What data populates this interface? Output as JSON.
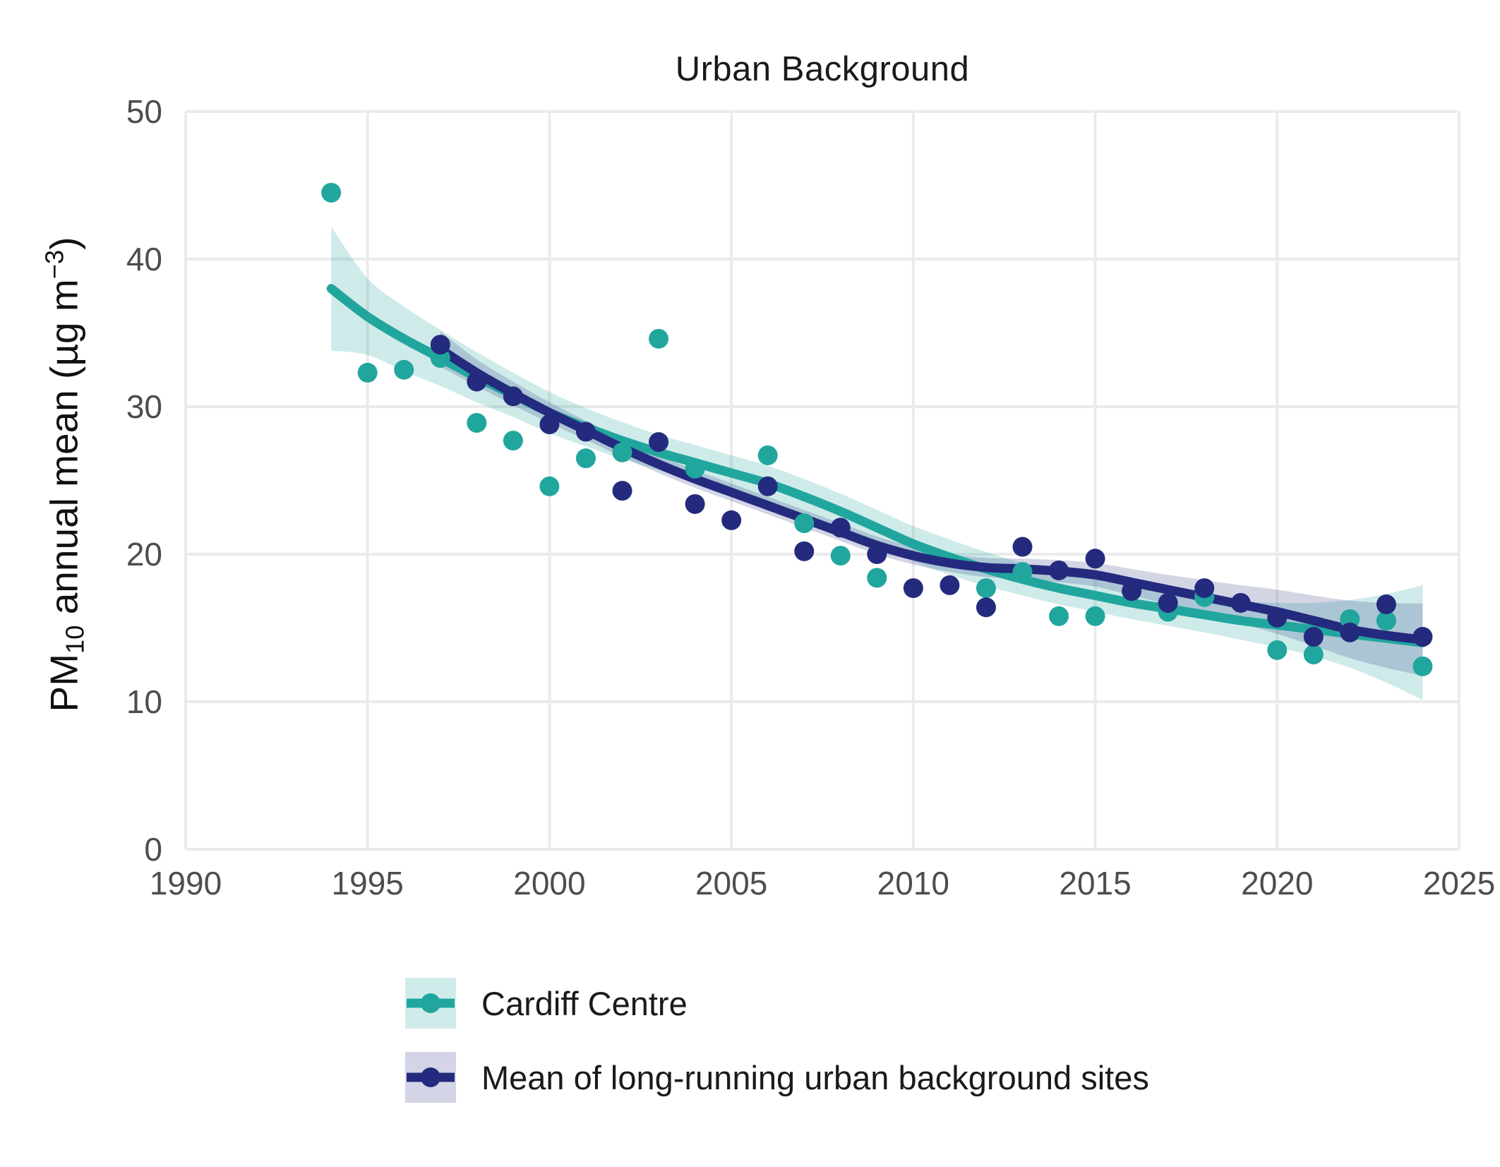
{
  "title": "Urban Background",
  "axes": {
    "y_label": {
      "prefix": "PM",
      "sub": "10",
      "mid": " annual mean (µg m",
      "sup": "−3",
      "suffix": ")"
    },
    "x_ticks": [
      "1990",
      "1995",
      "2000",
      "2005",
      "2010",
      "2015",
      "2020",
      "2025"
    ],
    "y_ticks": [
      "0",
      "10",
      "20",
      "30",
      "40",
      "50"
    ],
    "x_range": [
      1990,
      2025
    ],
    "y_range": [
      0,
      50
    ],
    "grid": "major only"
  },
  "colors": {
    "teal": "#21A69E",
    "navy": "#242B7E",
    "teal_band": "rgba(33,166,158,0.22)",
    "navy_band": "rgba(36,43,126,0.20)",
    "legend_swatch_teal": "#D0ECEA",
    "legend_swatch_navy": "#D3D4E6",
    "grid": "#EBEBEB",
    "tick_text": "#4d4d4d",
    "title_text": "#1a1a1a"
  },
  "legend": {
    "items": [
      {
        "label": "Cardiff Centre",
        "series": "cardiff-centre"
      },
      {
        "label": "Mean of long-running urban background sites",
        "series": "mean-long-running-sites"
      }
    ]
  },
  "chart_data": {
    "type": "scatter",
    "title": "Urban Background",
    "ylabel": "PM10 annual mean (µg m−3)",
    "xlabel": "",
    "xlim": [
      1990,
      2025
    ],
    "ylim": [
      0,
      50
    ],
    "grid": "on",
    "legend_position": "bottom-left",
    "series": [
      {
        "name": "Cardiff Centre",
        "color_key": "teal",
        "years": [
          1994,
          1995,
          1996,
          1997,
          1998,
          1999,
          2000,
          2001,
          2002,
          2003,
          2004,
          2005,
          2006,
          2007,
          2008,
          2009,
          2010,
          2011,
          2012,
          2013,
          2014,
          2015,
          2016,
          2017,
          2018,
          2019,
          2020,
          2021,
          2022,
          2023,
          2024
        ],
        "values": [
          44.5,
          32.3,
          32.5,
          33.3,
          28.9,
          27.7,
          24.6,
          26.5,
          26.9,
          34.6,
          25.8,
          null,
          26.7,
          22.1,
          19.9,
          18.4,
          null,
          null,
          17.7,
          18.8,
          15.8,
          15.8,
          null,
          16.1,
          17.1,
          null,
          13.5,
          13.2,
          15.6,
          15.5,
          12.4
        ],
        "trend": [
          38.0,
          36.1,
          34.6,
          33.3,
          32.0,
          30.8,
          29.6,
          28.6,
          27.7,
          26.9,
          26.2,
          25.5,
          24.8,
          23.9,
          22.9,
          21.8,
          20.7,
          19.8,
          19.0,
          18.3,
          17.7,
          17.2,
          16.7,
          16.3,
          15.9,
          15.5,
          15.2,
          14.9,
          14.6,
          14.3,
          14.0
        ],
        "band_half_width": [
          4.2,
          2.6,
          2.2,
          1.9,
          1.7,
          1.5,
          1.4,
          1.3,
          1.25,
          1.2,
          1.2,
          1.2,
          1.2,
          1.2,
          1.2,
          1.2,
          1.2,
          1.2,
          1.15,
          1.1,
          1.1,
          1.1,
          1.1,
          1.15,
          1.2,
          1.3,
          1.5,
          1.8,
          2.3,
          3.0,
          3.9
        ]
      },
      {
        "name": "Mean of long-running urban background sites",
        "color_key": "navy",
        "years": [
          1997,
          1998,
          1999,
          2000,
          2001,
          2002,
          2003,
          2004,
          2005,
          2006,
          2007,
          2008,
          2009,
          2010,
          2011,
          2012,
          2013,
          2014,
          2015,
          2016,
          2017,
          2018,
          2019,
          2020,
          2021,
          2022,
          2023,
          2024
        ],
        "values": [
          34.2,
          31.7,
          30.7,
          28.8,
          28.3,
          24.3,
          27.6,
          23.4,
          22.3,
          24.6,
          20.2,
          21.8,
          20.0,
          17.7,
          17.9,
          16.4,
          20.5,
          18.9,
          19.7,
          17.5,
          16.7,
          17.7,
          16.7,
          15.7,
          14.4,
          14.7,
          16.6,
          14.4
        ],
        "trend": [
          33.9,
          32.3,
          30.9,
          29.6,
          28.4,
          27.2,
          26.1,
          25.1,
          24.2,
          23.3,
          22.4,
          21.5,
          20.6,
          19.9,
          19.4,
          19.1,
          19.0,
          18.85,
          18.6,
          18.1,
          17.6,
          17.1,
          16.6,
          16.1,
          15.5,
          14.9,
          14.5,
          14.2
        ],
        "band_half_width": [
          1.2,
          0.9,
          0.8,
          0.7,
          0.65,
          0.6,
          0.6,
          0.6,
          0.6,
          0.6,
          0.6,
          0.6,
          0.6,
          0.6,
          0.6,
          0.65,
          0.7,
          0.75,
          0.8,
          0.9,
          1.0,
          1.15,
          1.3,
          1.5,
          1.7,
          1.95,
          2.2,
          2.45
        ]
      }
    ]
  }
}
